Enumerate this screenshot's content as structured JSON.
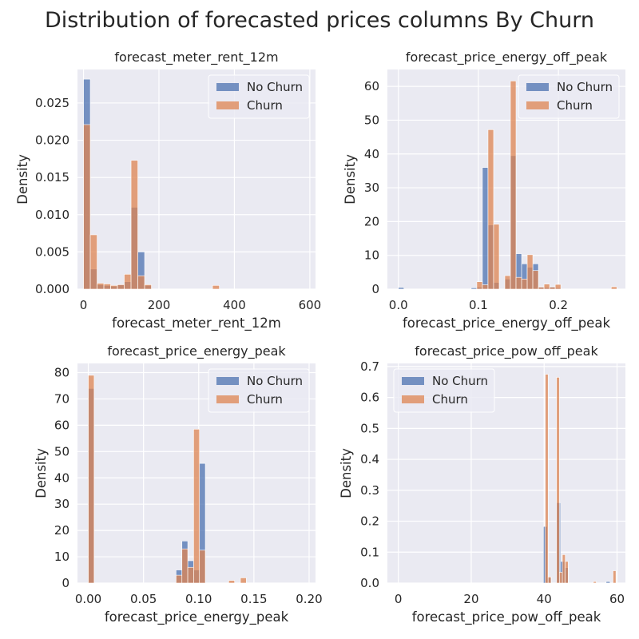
{
  "figure": {
    "title": "Distribution of forecasted prices columns By Churn"
  },
  "colors": {
    "no_churn": "#4c72b0",
    "churn": "#dd8452",
    "background": "#eaeaf2",
    "grid": "#ffffff"
  },
  "chart_data": [
    {
      "type": "bar",
      "subtype": "histogram",
      "title": "forecast_meter_rent_12m",
      "xlabel": "forecast_meter_rent_12m",
      "ylabel": "Density",
      "xlim": [
        -16,
        615
      ],
      "ylim": [
        0,
        0.0295
      ],
      "xticks": [
        0,
        200,
        400,
        600
      ],
      "xtick_labels": [
        "0",
        "200",
        "400",
        "600"
      ],
      "yticks": [
        0,
        0.005,
        0.01,
        0.015,
        0.02,
        0.025
      ],
      "ytick_labels": [
        "0.000",
        "0.005",
        "0.010",
        "0.015",
        "0.020",
        "0.025"
      ],
      "legend": "top-right",
      "grid": true,
      "series": [
        {
          "name": "No Churn",
          "color": "#4c72b0",
          "bins": [
            [
              0,
              18,
              0.0282
            ],
            [
              18,
              36,
              0.0027
            ],
            [
              36,
              54,
              0.0006
            ],
            [
              54,
              72,
              0.0005
            ],
            [
              72,
              90,
              0.0004
            ],
            [
              90,
              108,
              0.0006
            ],
            [
              108,
              126,
              0.001
            ],
            [
              126,
              144,
              0.011
            ],
            [
              144,
              162,
              0.005
            ],
            [
              162,
              180,
              0.0005
            ]
          ]
        },
        {
          "name": "Churn",
          "color": "#dd8452",
          "bins": [
            [
              0,
              18,
              0.0221
            ],
            [
              18,
              36,
              0.0073
            ],
            [
              36,
              54,
              0.0008
            ],
            [
              54,
              72,
              0.0007
            ],
            [
              72,
              90,
              0.0005
            ],
            [
              90,
              108,
              0.0006
            ],
            [
              108,
              126,
              0.002
            ],
            [
              126,
              144,
              0.0173
            ],
            [
              144,
              162,
              0.0018
            ],
            [
              162,
              180,
              0.0006
            ],
            [
              342,
              360,
              0.0005
            ]
          ]
        }
      ]
    },
    {
      "type": "bar",
      "subtype": "histogram",
      "title": "forecast_price_energy_off_peak",
      "xlabel": "forecast_price_energy_off_peak",
      "ylabel": "Density",
      "xlim": [
        -0.0137,
        0.2837
      ],
      "ylim": [
        0,
        65
      ],
      "xticks": [
        0,
        0.1,
        0.2
      ],
      "xtick_labels": [
        "0.0",
        "0.1",
        "0.2"
      ],
      "yticks": [
        0,
        10,
        20,
        30,
        40,
        50,
        60
      ],
      "ytick_labels": [
        "0",
        "10",
        "20",
        "30",
        "40",
        "50",
        "60"
      ],
      "legend": "top-right",
      "grid": true,
      "series": [
        {
          "name": "No Churn",
          "color": "#4c72b0",
          "bins": [
            [
              0,
              0.007,
              0.5
            ],
            [
              0.091,
              0.098,
              0.4
            ],
            [
              0.098,
              0.105,
              0.6
            ],
            [
              0.105,
              0.112,
              36
            ],
            [
              0.112,
              0.119,
              19
            ],
            [
              0.119,
              0.126,
              2
            ],
            [
              0.133,
              0.14,
              3
            ],
            [
              0.14,
              0.147,
              39.5
            ],
            [
              0.147,
              0.154,
              10.5
            ],
            [
              0.154,
              0.161,
              7.5
            ],
            [
              0.161,
              0.168,
              6.5
            ],
            [
              0.168,
              0.175,
              7.5
            ],
            [
              0.175,
              0.182,
              0.7
            ],
            [
              0.182,
              0.189,
              0.5
            ],
            [
              0.189,
              0.196,
              0.8
            ],
            [
              0.196,
              0.203,
              0.4
            ]
          ]
        },
        {
          "name": "Churn",
          "color": "#dd8452",
          "bins": [
            [
              0.098,
              0.105,
              2.2
            ],
            [
              0.105,
              0.112,
              1.3
            ],
            [
              0.112,
              0.119,
              47.2
            ],
            [
              0.119,
              0.126,
              19.2
            ],
            [
              0.133,
              0.14,
              4
            ],
            [
              0.14,
              0.147,
              61.6
            ],
            [
              0.147,
              0.154,
              3.5
            ],
            [
              0.154,
              0.161,
              3
            ],
            [
              0.161,
              0.168,
              10.2
            ],
            [
              0.168,
              0.175,
              5.5
            ],
            [
              0.175,
              0.182,
              0.6
            ],
            [
              0.182,
              0.189,
              1.5
            ],
            [
              0.189,
              0.196,
              0.6
            ],
            [
              0.196,
              0.203,
              1.4
            ],
            [
              0.266,
              0.273,
              0.7
            ]
          ]
        }
      ]
    },
    {
      "type": "bar",
      "subtype": "histogram",
      "title": "forecast_price_energy_peak",
      "xlabel": "forecast_price_energy_peak",
      "ylabel": "Density",
      "xlim": [
        -0.0098,
        0.2058
      ],
      "ylim": [
        0,
        83.5
      ],
      "xticks": [
        0,
        0.05,
        0.1,
        0.15,
        0.2
      ],
      "xtick_labels": [
        "0.00",
        "0.05",
        "0.10",
        "0.15",
        "0.20"
      ],
      "yticks": [
        0,
        10,
        20,
        30,
        40,
        50,
        60,
        70,
        80
      ],
      "ytick_labels": [
        "0",
        "10",
        "20",
        "30",
        "40",
        "50",
        "60",
        "70",
        "80"
      ],
      "legend": "top-right",
      "grid": true,
      "series": [
        {
          "name": "No Churn",
          "color": "#4c72b0",
          "bins": [
            [
              0,
              0.0053,
              74
            ],
            [
              0.0795,
              0.0848,
              5
            ],
            [
              0.0848,
              0.0901,
              16
            ],
            [
              0.0901,
              0.0954,
              8.5
            ],
            [
              0.0954,
              0.1007,
              5
            ],
            [
              0.1007,
              0.106,
              45.5
            ],
            [
              0.1007,
              0.1007,
              0
            ]
          ]
        },
        {
          "name": "Churn",
          "color": "#dd8452",
          "bins": [
            [
              0,
              0.0053,
              79
            ],
            [
              0.0795,
              0.0848,
              3
            ],
            [
              0.0848,
              0.0901,
              13
            ],
            [
              0.0901,
              0.0954,
              6
            ],
            [
              0.0954,
              0.1007,
              58.5
            ],
            [
              0.1007,
              0.106,
              12.5
            ],
            [
              0.1272,
              0.1325,
              1
            ],
            [
              0.1378,
              0.1431,
              2
            ]
          ]
        }
      ]
    },
    {
      "type": "bar",
      "subtype": "histogram",
      "title": "forecast_price_pow_off_peak",
      "xlabel": "forecast_price_pow_off_peak",
      "ylabel": "Density",
      "xlim": [
        -3,
        62.3
      ],
      "ylim": [
        0,
        0.71
      ],
      "xticks": [
        0,
        20,
        40,
        60
      ],
      "xtick_labels": [
        "0",
        "20",
        "40",
        "60"
      ],
      "yticks": [
        0,
        0.1,
        0.2,
        0.3,
        0.4,
        0.5,
        0.6,
        0.7
      ],
      "ytick_labels": [
        "0.0",
        "0.1",
        "0.2",
        "0.3",
        "0.4",
        "0.5",
        "0.6",
        "0.7"
      ],
      "legend": "top-left",
      "grid": true,
      "series": [
        {
          "name": "No Churn",
          "color": "#4c72b0",
          "bins": [
            [
              39.8,
              40.9,
              0.183
            ],
            [
              40.9,
              42.0,
              0.018
            ],
            [
              43.4,
              44.5,
              0.26
            ],
            [
              44.5,
              45.6,
              0.07
            ],
            [
              45.6,
              46.7,
              0.05
            ],
            [
              57.0,
              58.1,
              0.005
            ]
          ]
        },
        {
          "name": "Churn",
          "color": "#dd8452",
          "bins": [
            [
              40.3,
              41.1,
              0.675
            ],
            [
              41.1,
              41.9,
              0.02
            ],
            [
              43.4,
              44.2,
              0.665
            ],
            [
              44.2,
              45.0,
              0.035
            ],
            [
              45.0,
              45.8,
              0.092
            ],
            [
              45.8,
              46.6,
              0.07
            ],
            [
              53.5,
              54.3,
              0.005
            ],
            [
              58.9,
              59.7,
              0.04
            ]
          ]
        }
      ]
    }
  ]
}
